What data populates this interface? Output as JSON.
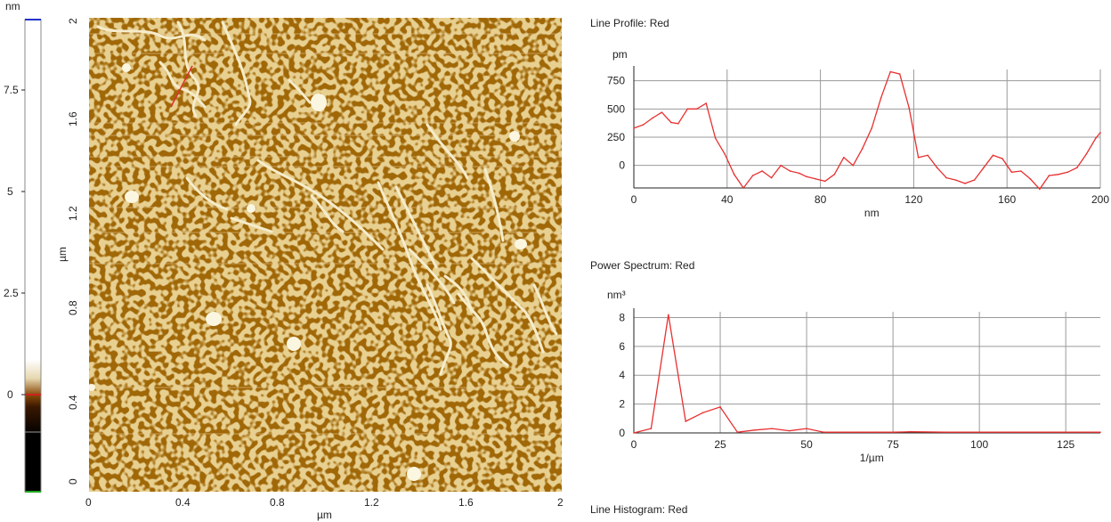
{
  "colorbar": {
    "unit": "nm",
    "ticks": [
      "7.5",
      "5",
      "2.5",
      "0"
    ],
    "tick_values": [
      7.5,
      5,
      2.5,
      0
    ],
    "range": [
      -2.4,
      9.2
    ],
    "colors": {
      "frame": "#888888",
      "top_marker": "#2233cc",
      "bottom_marker": "#22aa22",
      "zero_marker": "#cc2222"
    }
  },
  "afm_image": {
    "x_label": "µm",
    "y_label": "µm",
    "x_ticks": [
      "0",
      "0.4",
      "0.8",
      "1.2",
      "1.6",
      "2"
    ],
    "y_ticks": [
      "0",
      "0.4",
      "0.8",
      "1.2",
      "1.6",
      "2"
    ],
    "tick_values": [
      0,
      0.4,
      0.8,
      1.2,
      1.6,
      2
    ],
    "range": [
      0,
      2
    ],
    "colors": {
      "background": "#a0620a",
      "dark": "#5a3000",
      "bright": "#f6f0c8",
      "profile_line": "#e03030"
    }
  },
  "line_profile": {
    "title": "Line Profile: Red",
    "chart_data": {
      "type": "line",
      "xlabel": "nm",
      "ylabel": "pm",
      "xlim": [
        0,
        200
      ],
      "ylim": [
        -200,
        850
      ],
      "x_ticks": [
        "0",
        "40",
        "80",
        "120",
        "160",
        "200"
      ],
      "x_tick_values": [
        0,
        40,
        80,
        120,
        160,
        200
      ],
      "y_ticks": [
        "750",
        "500",
        "250",
        "0"
      ],
      "y_tick_values": [
        750,
        500,
        250,
        0
      ],
      "grid": true,
      "color": "#e83030",
      "x": [
        0,
        4,
        8,
        12,
        16,
        19,
        23,
        27,
        31,
        35,
        39,
        43,
        47,
        51,
        55,
        59,
        63,
        67,
        71,
        74,
        78,
        82,
        86,
        90,
        94,
        98,
        102,
        106,
        110,
        114,
        118,
        122,
        126,
        130,
        134,
        138,
        142,
        146,
        150,
        154,
        158,
        162,
        166,
        170,
        174,
        178,
        182,
        186,
        190,
        194,
        198,
        200
      ],
      "y": [
        330,
        360,
        420,
        470,
        380,
        370,
        500,
        500,
        550,
        240,
        100,
        -80,
        -200,
        -90,
        -50,
        -110,
        0,
        -50,
        -70,
        -100,
        -120,
        -140,
        -80,
        70,
        0,
        150,
        330,
        600,
        830,
        810,
        510,
        70,
        90,
        -20,
        -110,
        -130,
        -160,
        -130,
        -20,
        90,
        60,
        -60,
        -50,
        -120,
        -210,
        -90,
        -80,
        -60,
        -20,
        100,
        240,
        290
      ]
    }
  },
  "power_spectrum": {
    "title": "Power Spectrum: Red",
    "chart_data": {
      "type": "line",
      "xlabel": "1/µm",
      "ylabel": "nm³",
      "xlim": [
        0,
        135
      ],
      "ylim": [
        0,
        8.4
      ],
      "x_ticks": [
        "0",
        "25",
        "50",
        "75",
        "100",
        "125"
      ],
      "x_tick_values": [
        0,
        25,
        50,
        75,
        100,
        125
      ],
      "y_ticks": [
        "8",
        "6",
        "4",
        "2",
        "0"
      ],
      "y_tick_values": [
        8,
        6,
        4,
        2,
        0
      ],
      "grid": true,
      "color": "#e83030",
      "x": [
        0,
        5,
        10,
        15,
        20,
        25,
        30,
        35,
        40,
        45,
        50,
        55,
        60,
        65,
        70,
        75,
        80,
        90,
        100,
        110,
        120,
        135
      ],
      "y": [
        0,
        0.3,
        8.2,
        0.8,
        1.4,
        1.8,
        0.05,
        0.2,
        0.3,
        0.15,
        0.3,
        0.05,
        0.05,
        0.05,
        0.05,
        0.05,
        0.08,
        0.05,
        0.05,
        0.05,
        0.05,
        0.05
      ]
    }
  },
  "line_histogram": {
    "title": "Line Histogram: Red"
  }
}
